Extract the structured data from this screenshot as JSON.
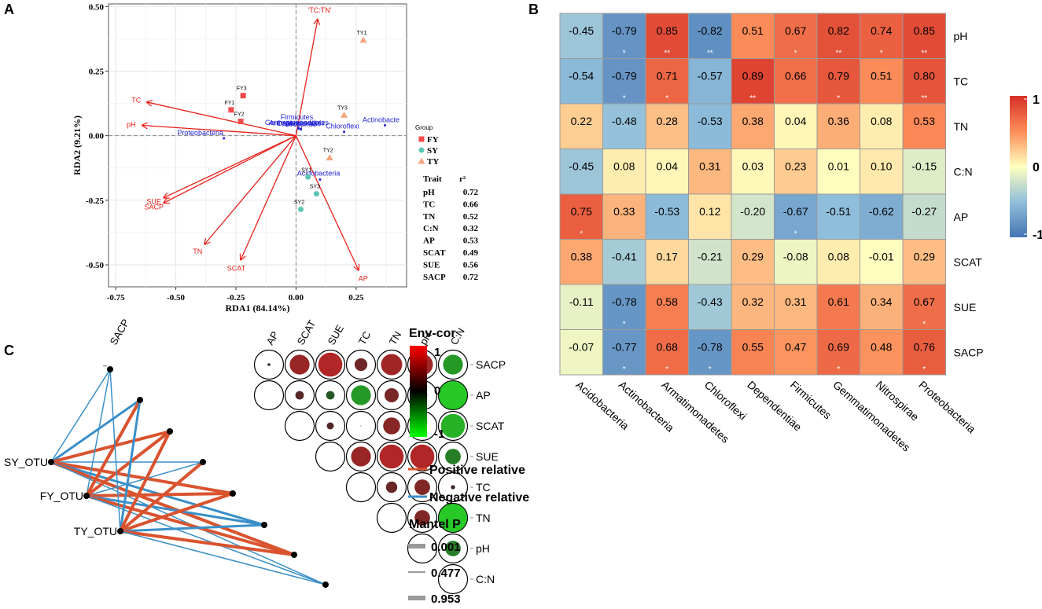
{
  "colors": {
    "red": "#e8201a",
    "blue": "#1f1fd6",
    "pos": "#d9532f",
    "neg": "#3a8fc8",
    "tileBorder": "#9a9a9a"
  },
  "chart_data": [
    {
      "panel": "A",
      "type": "scatter",
      "subtype": "rda-biplot",
      "xlabel": "RDA1 (84.14%)",
      "ylabel": "RDA2 (9.21%)",
      "xlim": [
        -0.78,
        0.46
      ],
      "ylim": [
        -0.585,
        0.51
      ],
      "xticks": [
        "-0.75",
        "-0.50",
        "-0.25",
        "0.00",
        "0.25"
      ],
      "yticks": [
        "0.50",
        "0.25",
        "0.00",
        "-0.25",
        "-0.50"
      ],
      "legend": {
        "title": "Group",
        "items": [
          {
            "label": "FY",
            "shape": "square",
            "color": "#f44a4a"
          },
          {
            "label": "SY",
            "shape": "circle",
            "color": "#5cc6b4"
          },
          {
            "label": "TY",
            "shape": "triangle",
            "color": "#f7a57d"
          }
        ]
      },
      "samples": [
        {
          "label": "TY1",
          "group": "TY",
          "x": 0.28,
          "y": 0.37
        },
        {
          "label": "TY2",
          "group": "TY",
          "x": 0.14,
          "y": -0.085
        },
        {
          "label": "TY3",
          "group": "TY",
          "x": 0.2,
          "y": 0.08
        },
        {
          "label": "FY1",
          "group": "FY",
          "x": -0.27,
          "y": 0.1
        },
        {
          "label": "FY2",
          "group": "FY",
          "x": -0.23,
          "y": 0.055
        },
        {
          "label": "FY3",
          "group": "FY",
          "x": -0.22,
          "y": 0.155
        },
        {
          "label": "SY1",
          "group": "SY",
          "x": 0.05,
          "y": -0.16
        },
        {
          "label": "SY2",
          "group": "SY",
          "x": 0.02,
          "y": -0.285
        },
        {
          "label": "SY3",
          "group": "SY",
          "x": 0.085,
          "y": -0.225
        }
      ],
      "arrows": [
        {
          "label": "'TC:TN'",
          "x": 0.09,
          "y": 0.45
        },
        {
          "label": "TC",
          "x": -0.62,
          "y": 0.13
        },
        {
          "label": "pH",
          "x": -0.64,
          "y": 0.04
        },
        {
          "label": "SUE",
          "x": -0.55,
          "y": -0.24
        },
        {
          "label": "SACP",
          "x": -0.55,
          "y": -0.26
        },
        {
          "label": "TN",
          "x": -0.38,
          "y": -0.42
        },
        {
          "label": "SCAT",
          "x": -0.23,
          "y": -0.48
        },
        {
          "label": "AP",
          "x": 0.26,
          "y": -0.52
        }
      ],
      "species": [
        {
          "label": "Firmicutes",
          "x": 0.01,
          "y": 0.05
        },
        {
          "label": "Gemmatimonadetes",
          "x": 0.01,
          "y": 0.03
        },
        {
          "label": "Armatimonadetes",
          "x": 0.01,
          "y": 0.028
        },
        {
          "label": "Dependentiae",
          "x": 0.02,
          "y": 0.026
        },
        {
          "label": "Nitrospirae",
          "x": 0.02,
          "y": 0.024
        },
        {
          "label": "Proteobacteria",
          "x": -0.3,
          "y": -0.01
        },
        {
          "label": "Chloroflexi",
          "x": 0.2,
          "y": 0.015
        },
        {
          "label": "Actinobacte",
          "x": 0.37,
          "y": 0.04
        },
        {
          "label": "Acidobacteria",
          "x": 0.1,
          "y": -0.17
        }
      ],
      "trait_table": {
        "header": [
          "Trait",
          "r²"
        ],
        "rows": [
          [
            "pH",
            "0.72"
          ],
          [
            "TC",
            "0.66"
          ],
          [
            "TN",
            "0.52"
          ],
          [
            "C:N",
            "0.32"
          ],
          [
            "AP",
            "0.53"
          ],
          [
            "SCAT",
            "0.49"
          ],
          [
            "SUE",
            "0.56"
          ],
          [
            "SACP",
            "0.72"
          ]
        ]
      }
    },
    {
      "panel": "B",
      "type": "heatmap",
      "rows": [
        "pH",
        "TC",
        "TN",
        "C:N",
        "AP",
        "SCAT",
        "SUE",
        "SACP"
      ],
      "cols": [
        "Acidobacteria",
        "Actinobacteria",
        "Armatimonadetes",
        "Chloroflexi",
        "Dependentiae",
        "Firmicutes",
        "Gemmatimonadetes",
        "Nitrospirae",
        "Proteobacteria"
      ],
      "values": [
        [
          -0.45,
          -0.79,
          0.85,
          -0.82,
          0.51,
          0.67,
          0.82,
          0.74,
          0.85
        ],
        [
          -0.54,
          -0.79,
          0.71,
          -0.57,
          0.89,
          0.66,
          0.79,
          0.51,
          0.8
        ],
        [
          0.22,
          -0.48,
          0.28,
          -0.53,
          0.38,
          0.04,
          0.36,
          0.08,
          0.53
        ],
        [
          -0.45,
          0.08,
          0.04,
          0.31,
          0.03,
          0.23,
          0.01,
          0.1,
          -0.15
        ],
        [
          0.75,
          0.33,
          -0.53,
          0.12,
          -0.2,
          -0.67,
          -0.51,
          -0.62,
          -0.27
        ],
        [
          0.38,
          -0.41,
          0.17,
          -0.21,
          0.29,
          -0.08,
          0.08,
          -0.01,
          0.29
        ],
        [
          -0.11,
          -0.78,
          0.58,
          -0.43,
          0.32,
          0.31,
          0.61,
          0.34,
          0.67
        ],
        [
          -0.07,
          -0.77,
          0.68,
          -0.78,
          0.55,
          0.47,
          0.69,
          0.48,
          0.76
        ]
      ],
      "value_labels": [
        [
          "-0.45",
          "-0.79",
          "0.85",
          "-0.82",
          "0.51",
          "0.67",
          "0.82",
          "0.74",
          "0.85"
        ],
        [
          "-0.54",
          "-0.79",
          "0.71",
          "-0.57",
          "0.89",
          "0.66",
          "0.79",
          "0.51",
          "0.80"
        ],
        [
          "0.22",
          "-0.48",
          "0.28",
          "-0.53",
          "0.38",
          "0.04",
          "0.36",
          "0.08",
          "0.53"
        ],
        [
          "-0.45",
          "0.08",
          "0.04",
          "0.31",
          "0.03",
          "0.23",
          "0.01",
          "0.10",
          "-0.15"
        ],
        [
          "0.75",
          "0.33",
          "-0.53",
          "0.12",
          "-0.20",
          "-0.67",
          "-0.51",
          "-0.62",
          "-0.27"
        ],
        [
          "0.38",
          "-0.41",
          "0.17",
          "-0.21",
          "0.29",
          "-0.08",
          "0.08",
          "-0.01",
          "0.29"
        ],
        [
          "-0.11",
          "-0.78",
          "0.58",
          "-0.43",
          "0.32",
          "0.31",
          "0.61",
          "0.34",
          "0.67"
        ],
        [
          "-0.07",
          "-0.77",
          "0.68",
          "-0.78",
          "0.55",
          "0.47",
          "0.69",
          "0.48",
          "0.76"
        ]
      ],
      "stars": [
        [
          "",
          "*",
          "**",
          "**",
          "",
          "*",
          "**",
          "*",
          "**"
        ],
        [
          "",
          "*",
          "*",
          "",
          "**",
          "",
          "*",
          "",
          "**"
        ],
        [
          "",
          "",
          "",
          "",
          "",
          "",
          "",
          "",
          ""
        ],
        [
          "",
          "",
          "",
          "",
          "",
          "",
          "",
          "",
          ""
        ],
        [
          "*",
          "",
          "",
          "",
          "",
          "*",
          "",
          "",
          ""
        ],
        [
          "",
          "",
          "",
          "",
          "",
          "",
          "",
          "",
          ""
        ],
        [
          "",
          "*",
          "",
          "",
          "",
          "",
          "",
          "",
          "*"
        ],
        [
          "",
          "*",
          "*",
          "*",
          "",
          "",
          "*",
          "",
          "*"
        ]
      ],
      "colorbar": {
        "min": -1,
        "max": 1,
        "ticks": [
          "1",
          "0",
          "-1"
        ]
      }
    },
    {
      "panel": "C",
      "type": "heatmap",
      "subtype": "mantel-network",
      "vars": [
        "SACP",
        "AP",
        "SCAT",
        "SUE",
        "TC",
        "TN",
        "pH",
        "C:N"
      ],
      "corr": [
        [
          null,
          0.1,
          0.7,
          0.85,
          0.45,
          0.75,
          0.75,
          -0.7
        ],
        [
          null,
          null,
          0.3,
          -0.3,
          -0.7,
          0.5,
          -0.35,
          -1
        ],
        [
          null,
          null,
          null,
          0.25,
          0.03,
          0.6,
          0.2,
          -0.85
        ],
        [
          null,
          null,
          null,
          null,
          0.7,
          0.85,
          0.85,
          -0.55
        ],
        [
          null,
          null,
          null,
          null,
          null,
          0.4,
          0.55,
          0.15
        ],
        [
          null,
          null,
          null,
          null,
          null,
          null,
          0.55,
          -1
        ],
        [
          null,
          null,
          null,
          null,
          null,
          null,
          null,
          -0.55
        ],
        [
          null,
          null,
          null,
          null,
          null,
          null,
          null,
          null
        ]
      ],
      "otus": [
        "SY_OTU",
        "FY_OTU",
        "TY_OTU"
      ],
      "links": [
        {
          "from": "SY_OTU",
          "to": "SACP",
          "sign": "neg",
          "w": 1.5
        },
        {
          "from": "SY_OTU",
          "to": "AP",
          "sign": "neg",
          "w": 3
        },
        {
          "from": "SY_OTU",
          "to": "SCAT",
          "sign": "pos",
          "w": 4
        },
        {
          "from": "SY_OTU",
          "to": "SUE",
          "sign": "neg",
          "w": 1.5
        },
        {
          "from": "SY_OTU",
          "to": "TC",
          "sign": "pos",
          "w": 4
        },
        {
          "from": "SY_OTU",
          "to": "TN",
          "sign": "neg",
          "w": 3
        },
        {
          "from": "SY_OTU",
          "to": "pH",
          "sign": "pos",
          "w": 4
        },
        {
          "from": "SY_OTU",
          "to": "C:N",
          "sign": "neg",
          "w": 1.5
        },
        {
          "from": "FY_OTU",
          "to": "SACP",
          "sign": "neg",
          "w": 1.5
        },
        {
          "from": "FY_OTU",
          "to": "AP",
          "sign": "pos",
          "w": 4
        },
        {
          "from": "FY_OTU",
          "to": "SCAT",
          "sign": "pos",
          "w": 4
        },
        {
          "from": "FY_OTU",
          "to": "SUE",
          "sign": "neg",
          "w": 1.5
        },
        {
          "from": "FY_OTU",
          "to": "TC",
          "sign": "pos",
          "w": 4
        },
        {
          "from": "FY_OTU",
          "to": "TN",
          "sign": "neg",
          "w": 3
        },
        {
          "from": "FY_OTU",
          "to": "pH",
          "sign": "pos",
          "w": 4
        },
        {
          "from": "FY_OTU",
          "to": "C:N",
          "sign": "neg",
          "w": 1.5
        },
        {
          "from": "TY_OTU",
          "to": "SACP",
          "sign": "neg",
          "w": 1.5
        },
        {
          "from": "TY_OTU",
          "to": "AP",
          "sign": "neg",
          "w": 3
        },
        {
          "from": "TY_OTU",
          "to": "SCAT",
          "sign": "pos",
          "w": 4
        },
        {
          "from": "TY_OTU",
          "to": "SUE",
          "sign": "pos",
          "w": 4
        },
        {
          "from": "TY_OTU",
          "to": "TC",
          "sign": "pos",
          "w": 4
        },
        {
          "from": "TY_OTU",
          "to": "TN",
          "sign": "neg",
          "w": 3
        },
        {
          "from": "TY_OTU",
          "to": "pH",
          "sign": "pos",
          "w": 4
        },
        {
          "from": "TY_OTU",
          "to": "C:N",
          "sign": "neg",
          "w": 1.5
        }
      ],
      "legend": {
        "env_title": "Env-cor",
        "env_ticks": [
          "1",
          "0",
          "-1"
        ],
        "positive_label": "Positive relative",
        "negative_label": "Negative relative",
        "mantel_title": "Mantel P",
        "mantel_values": [
          "0.001",
          "0.477",
          "0.953"
        ]
      }
    }
  ]
}
